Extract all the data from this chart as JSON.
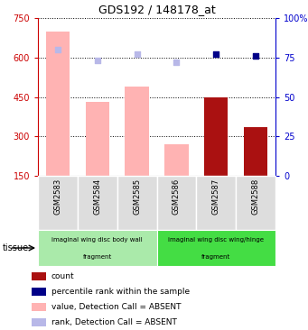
{
  "title": "GDS192 / 148178_at",
  "samples": [
    "GSM2583",
    "GSM2584",
    "GSM2585",
    "GSM2586",
    "GSM2587",
    "GSM2588"
  ],
  "bar_values_absent": [
    700,
    430,
    490,
    270,
    null,
    null
  ],
  "bar_values_present": [
    null,
    null,
    null,
    null,
    450,
    335
  ],
  "rank_absent_pct": [
    80,
    73,
    77,
    72,
    null,
    null
  ],
  "rank_present_pct": [
    null,
    null,
    null,
    null,
    77,
    76
  ],
  "ylim_left": [
    150,
    750
  ],
  "ylim_right": [
    0,
    100
  ],
  "yticks_left": [
    150,
    300,
    450,
    600,
    750
  ],
  "yticks_right": [
    0,
    25,
    50,
    75,
    100
  ],
  "color_bar_absent": "#ffb3b3",
  "color_bar_present": "#aa1111",
  "color_rank_absent": "#b8b8e8",
  "color_rank_present": "#000088",
  "tissue_groups": [
    {
      "label_top": "imaginal wing disc body wall",
      "label_bot": "fragment",
      "start": 0,
      "end": 3,
      "color": "#aaeaaa"
    },
    {
      "label_top": "imaginal wing disc wing/hinge",
      "label_bot": "fragment",
      "start": 3,
      "end": 6,
      "color": "#44dd44"
    }
  ],
  "legend_items": [
    {
      "color": "#aa1111",
      "label": "count"
    },
    {
      "color": "#000088",
      "label": "percentile rank within the sample"
    },
    {
      "color": "#ffb3b3",
      "label": "value, Detection Call = ABSENT"
    },
    {
      "color": "#b8b8e8",
      "label": "rank, Detection Call = ABSENT"
    }
  ],
  "tissue_label": "tissue",
  "right_axis_color": "#0000cc",
  "left_axis_color": "#cc0000",
  "grid_color": "black",
  "bar_bottom": 150
}
